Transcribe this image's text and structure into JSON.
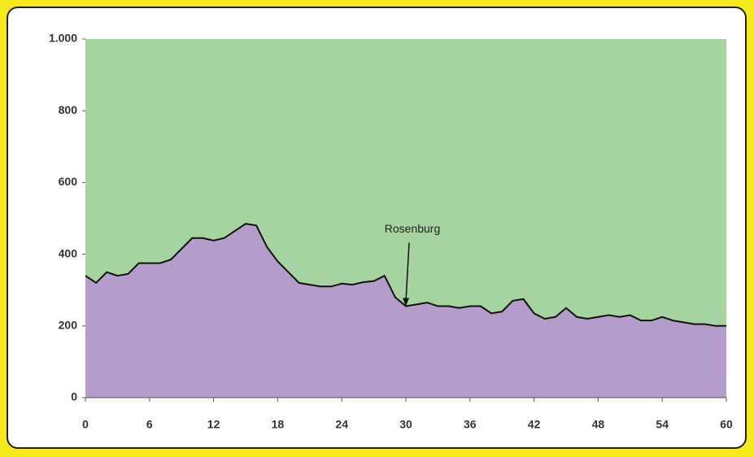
{
  "chart_data": {
    "type": "area",
    "x": [
      0,
      1,
      2,
      3,
      4,
      5,
      6,
      7,
      8,
      9,
      10,
      11,
      12,
      13,
      14,
      15,
      16,
      17,
      18,
      19,
      20,
      21,
      22,
      23,
      24,
      25,
      26,
      27,
      28,
      29,
      30,
      31,
      32,
      33,
      34,
      35,
      36,
      37,
      38,
      39,
      40,
      41,
      42,
      43,
      44,
      45,
      46,
      47,
      48,
      49,
      50,
      51,
      52,
      53,
      54,
      55,
      56,
      57,
      58,
      59,
      60
    ],
    "values": [
      340,
      320,
      350,
      340,
      345,
      375,
      375,
      375,
      385,
      415,
      445,
      445,
      438,
      445,
      465,
      485,
      480,
      420,
      380,
      350,
      320,
      315,
      310,
      310,
      318,
      315,
      322,
      325,
      340,
      280,
      255,
      260,
      265,
      255,
      255,
      250,
      255,
      255,
      235,
      240,
      270,
      275,
      235,
      220,
      225,
      250,
      225,
      220,
      225,
      230,
      225,
      230,
      215,
      215,
      225,
      215,
      210,
      205,
      205,
      200,
      200
    ],
    "color": "#b49ccb",
    "line_color": "#111111",
    "plot_background": "#a5d4a1",
    "xlim": [
      0,
      60
    ],
    "xticks": [
      0,
      6,
      12,
      18,
      24,
      30,
      36,
      42,
      48,
      54,
      60
    ],
    "ylim": [
      0,
      1000
    ],
    "yticks": [
      0,
      200,
      400,
      600,
      800,
      {
        "value": 1000,
        "label": "1.000"
      }
    ],
    "annotations": [
      {
        "text": "Rosenburg",
        "x": 30,
        "y": 255
      }
    ]
  }
}
